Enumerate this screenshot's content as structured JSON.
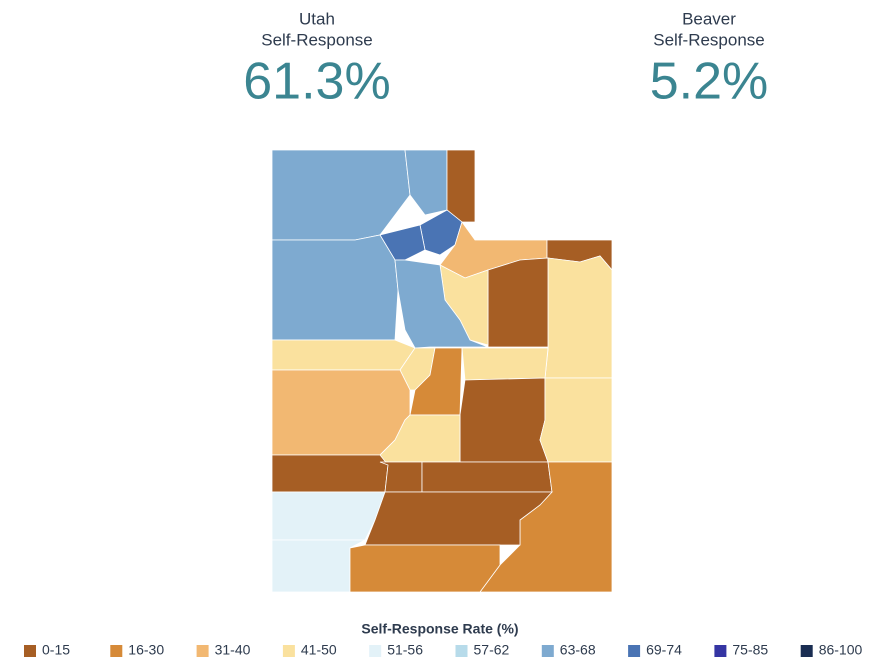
{
  "stats": [
    {
      "place": "Utah",
      "label": "Self-Response",
      "value": "61.3%"
    },
    {
      "place": "Beaver",
      "label": "Self-Response",
      "value": "5.2%"
    }
  ],
  "legend": {
    "title": "Self-Response Rate (%)",
    "items": [
      {
        "label": "0-15",
        "color": "#a65e24"
      },
      {
        "label": "16-30",
        "color": "#d68a38"
      },
      {
        "label": "31-40",
        "color": "#f2b872"
      },
      {
        "label": "41-50",
        "color": "#fae19e"
      },
      {
        "label": "51-56",
        "color": "#e3f2f8"
      },
      {
        "label": "57-62",
        "color": "#b7dbea"
      },
      {
        "label": "63-68",
        "color": "#7eaad0"
      },
      {
        "label": "69-74",
        "color": "#4a74b4"
      },
      {
        "label": "75-85",
        "color": "#3535a3"
      },
      {
        "label": "86-100",
        "color": "#1a2d52"
      }
    ]
  }
}
